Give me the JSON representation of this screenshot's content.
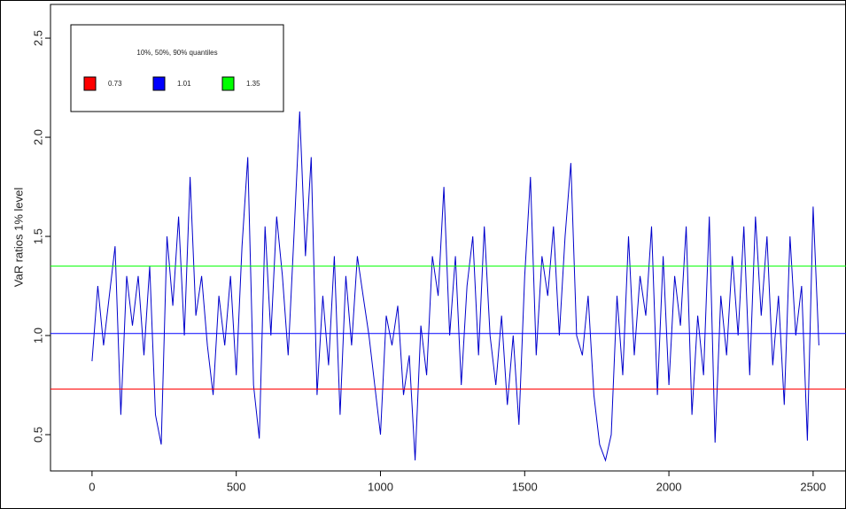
{
  "chart_data": {
    "type": "line",
    "y_label": "VaR ratios 1% level",
    "legend_title": "10%, 50%, 90% quantiles",
    "x": [
      0,
      20,
      40,
      60,
      80,
      100,
      120,
      140,
      160,
      180,
      200,
      220,
      240,
      260,
      280,
      300,
      320,
      340,
      360,
      380,
      400,
      420,
      440,
      460,
      480,
      500,
      520,
      540,
      560,
      580,
      600,
      620,
      640,
      660,
      680,
      700,
      720,
      740,
      760,
      780,
      800,
      820,
      840,
      860,
      880,
      900,
      920,
      940,
      960,
      980,
      1000,
      1020,
      1040,
      1060,
      1080,
      1100,
      1120,
      1140,
      1160,
      1180,
      1200,
      1220,
      1240,
      1260,
      1280,
      1300,
      1320,
      1340,
      1360,
      1380,
      1400,
      1420,
      1440,
      1460,
      1480,
      1500,
      1520,
      1540,
      1560,
      1580,
      1600,
      1620,
      1640,
      1660,
      1680,
      1700,
      1720,
      1740,
      1760,
      1780,
      1800,
      1820,
      1840,
      1860,
      1880,
      1900,
      1920,
      1940,
      1960,
      1980,
      2000,
      2020,
      2040,
      2060,
      2080,
      2100,
      2120,
      2140,
      2160,
      2180,
      2200,
      2220,
      2240,
      2260,
      2280,
      2300,
      2320,
      2340,
      2360,
      2380,
      2400,
      2420,
      2440,
      2460,
      2480,
      2500,
      2520
    ],
    "series": [
      {
        "color": "#0000cc",
        "values": [
          0.87,
          1.25,
          0.95,
          1.2,
          1.45,
          0.6,
          1.3,
          1.05,
          1.3,
          0.9,
          1.35,
          0.6,
          0.45,
          1.5,
          1.15,
          1.6,
          1.0,
          1.8,
          1.1,
          1.3,
          0.95,
          0.7,
          1.2,
          0.95,
          1.3,
          0.8,
          1.45,
          1.9,
          0.75,
          0.48,
          1.55,
          1.0,
          1.6,
          1.3,
          0.9,
          1.5,
          2.13,
          1.4,
          1.9,
          0.7,
          1.2,
          0.85,
          1.4,
          0.6,
          1.3,
          0.95,
          1.4,
          1.2,
          1.0,
          0.75,
          0.5,
          1.1,
          0.95,
          1.15,
          0.7,
          0.9,
          0.37,
          1.05,
          0.8,
          1.4,
          1.2,
          1.75,
          1.0,
          1.4,
          0.75,
          1.25,
          1.5,
          0.9,
          1.55,
          1.0,
          0.75,
          1.1,
          0.65,
          1.0,
          0.55,
          1.3,
          1.8,
          0.9,
          1.4,
          1.2,
          1.55,
          1.0,
          1.5,
          1.87,
          1.0,
          0.9,
          1.2,
          0.7,
          0.45,
          0.37,
          0.5,
          1.2,
          0.8,
          1.5,
          0.9,
          1.3,
          1.1,
          1.55,
          0.7,
          1.4,
          0.75,
          1.3,
          1.05,
          1.55,
          0.6,
          1.1,
          0.8,
          1.6,
          0.46,
          1.2,
          0.9,
          1.4,
          1.0,
          1.55,
          0.8,
          1.6,
          1.1,
          1.5,
          0.85,
          1.2,
          0.65,
          1.5,
          1.0,
          1.25,
          0.47,
          1.65,
          0.95
        ]
      }
    ],
    "hlines": [
      {
        "value": 0.73,
        "color": "#ff0000"
      },
      {
        "value": 1.01,
        "color": "#0000ff"
      },
      {
        "value": 1.35,
        "color": "#00ff00"
      }
    ],
    "xlim": [
      -144,
      2614
    ],
    "ylim": [
      0.317,
      2.67
    ],
    "xticks": [
      0,
      500,
      1000,
      1500,
      2000,
      2500
    ],
    "yticks": [
      0.5,
      {
        "value": 1,
        "label": "1.0"
      },
      1.5,
      {
        "value": 2,
        "label": "2.0"
      },
      2.5
    ]
  }
}
